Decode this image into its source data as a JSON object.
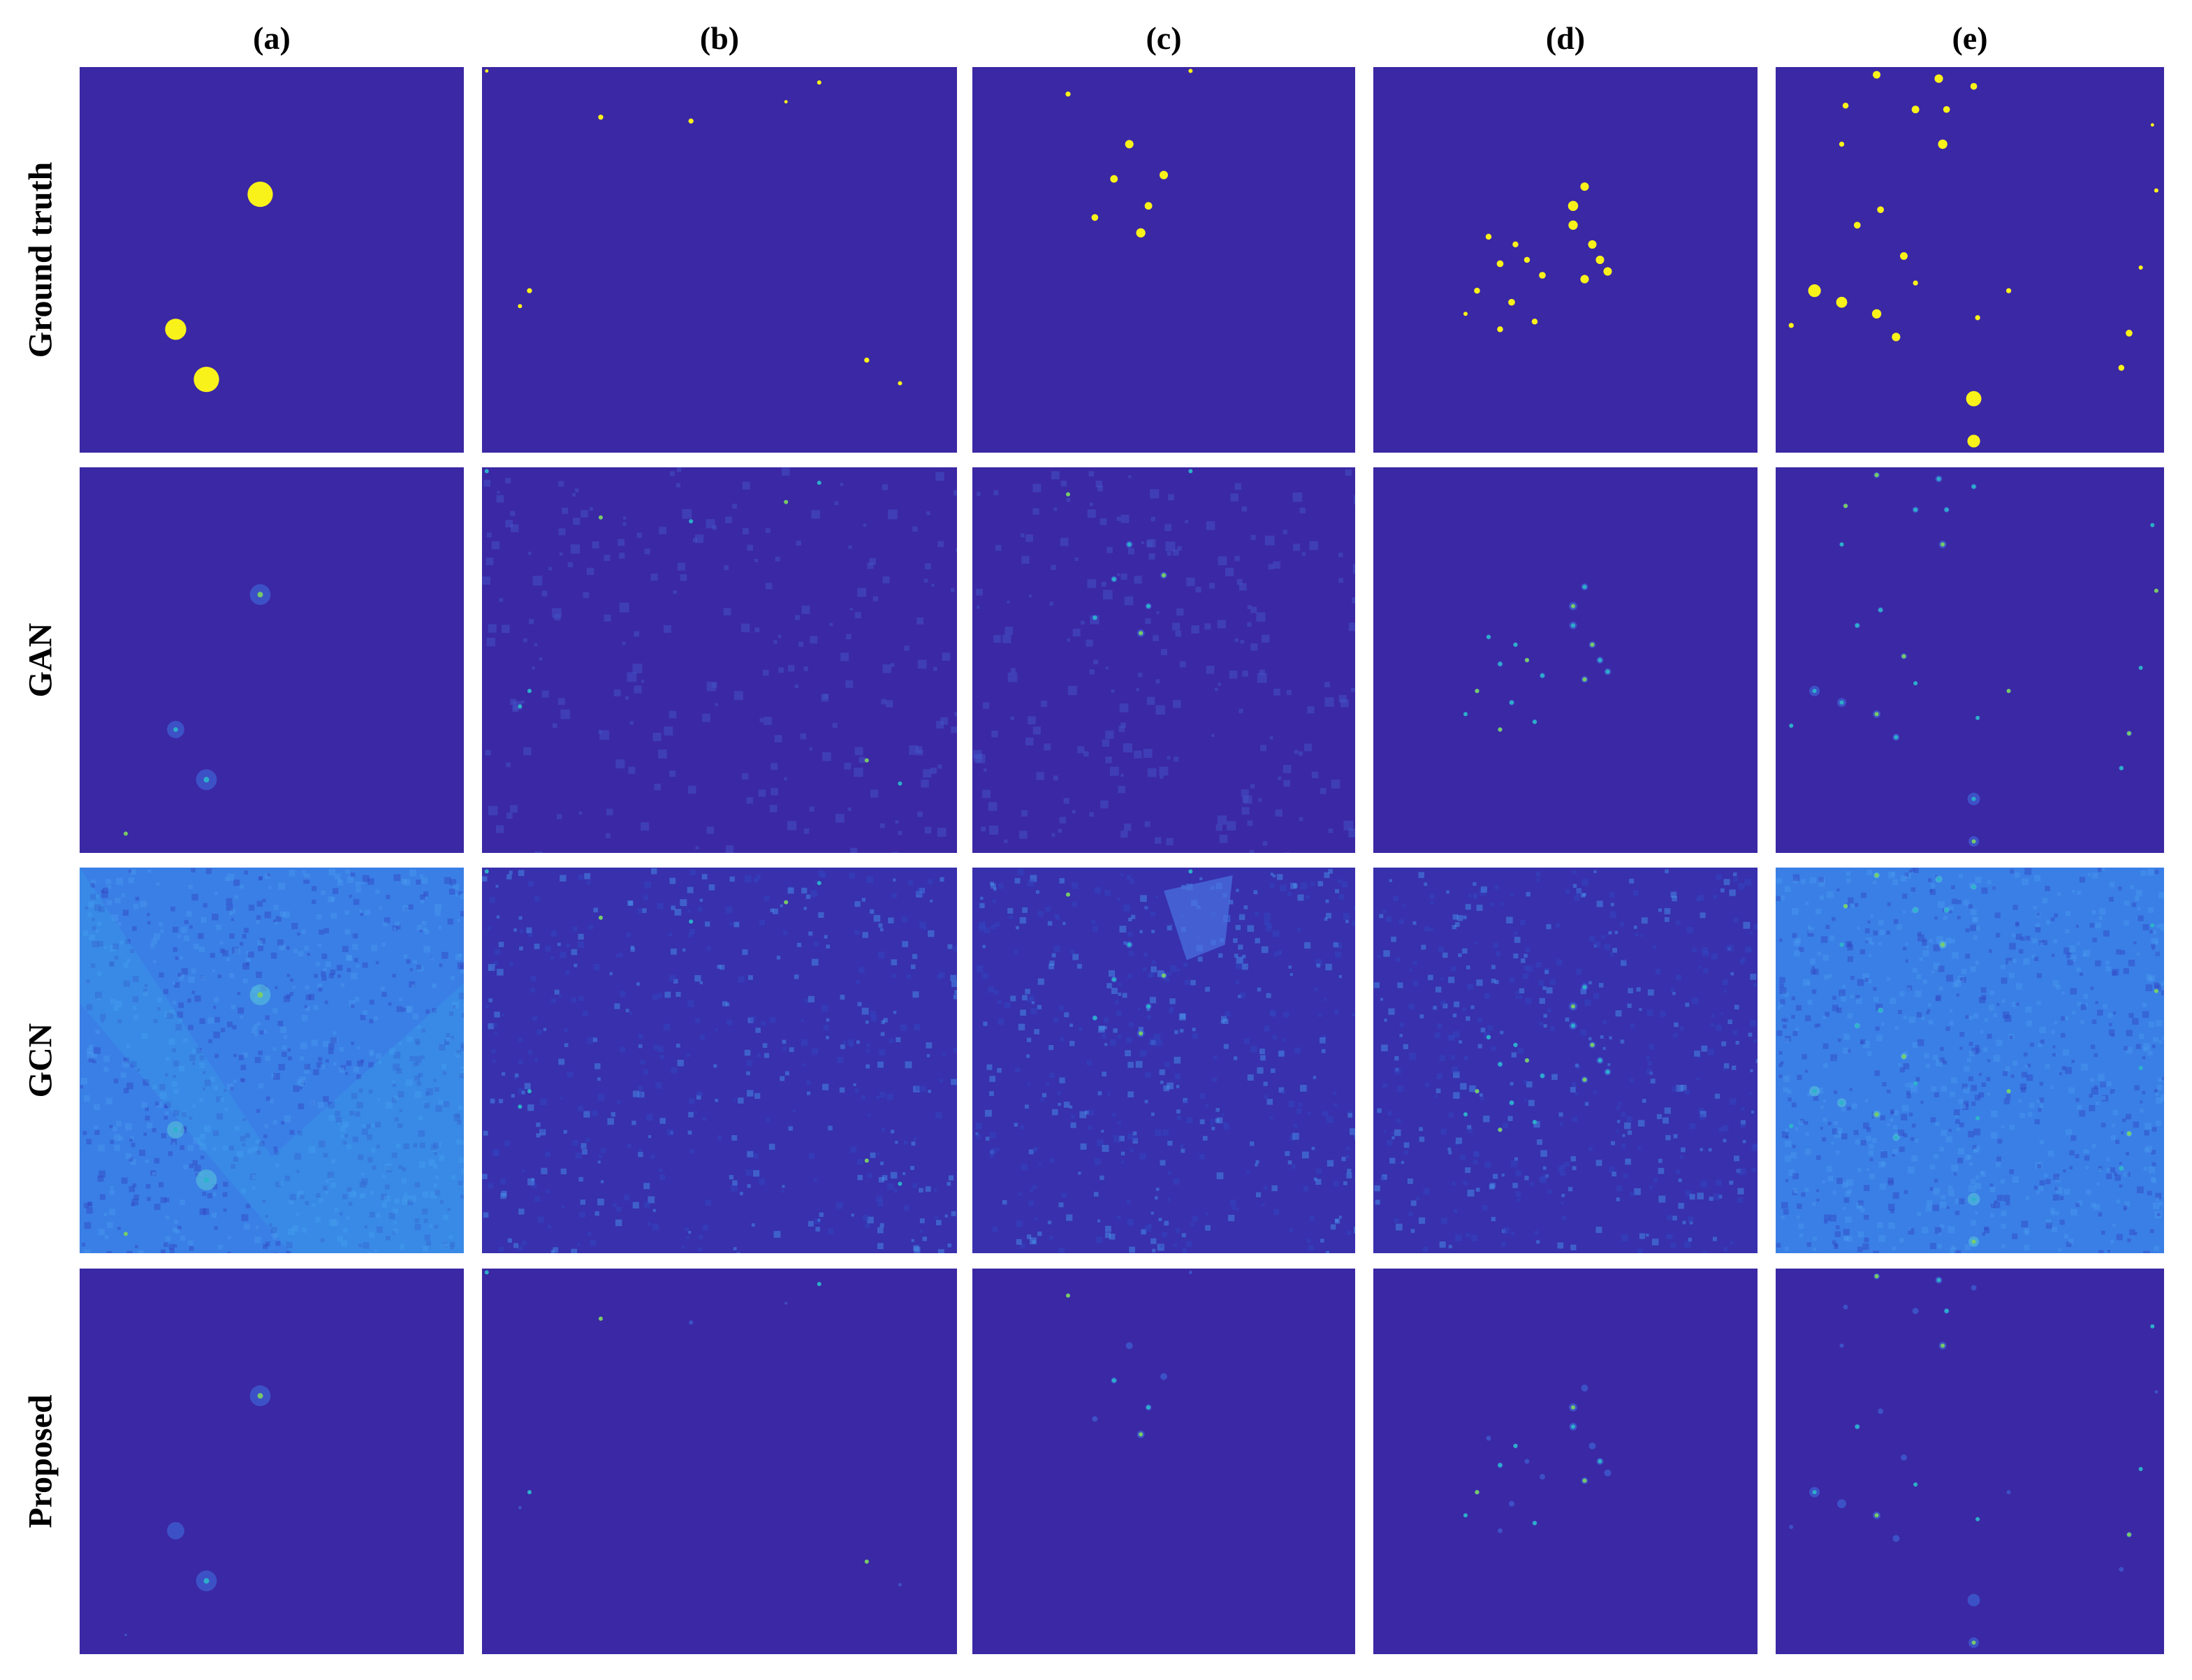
{
  "figure": {
    "column_labels": [
      "(a)",
      "(b)",
      "(c)",
      "(d)",
      "(e)"
    ],
    "row_labels": [
      "Ground truth",
      "GAN",
      "GCN",
      "Proposed"
    ]
  },
  "colors": {
    "background_dark": "#3b28a4",
    "background_gcn_light": "#3a7fe6",
    "background_gcn_dim": "#3830ad",
    "target_yellow": "#f9f21a",
    "response_cyan": "#2bb3c9",
    "response_green": "#7bd063",
    "response_blue": "#3f6ce0"
  },
  "panels": {
    "rows": [
      "ground_truth",
      "gan",
      "gcn",
      "proposed"
    ],
    "cols": [
      "a",
      "b",
      "c",
      "d",
      "e"
    ]
  }
}
